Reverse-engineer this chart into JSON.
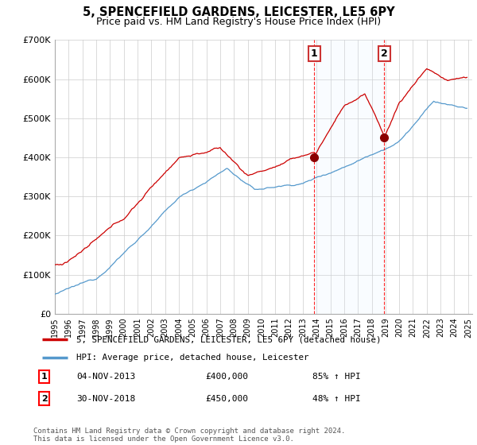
{
  "title": "5, SPENCEFIELD GARDENS, LEICESTER, LE5 6PY",
  "subtitle": "Price paid vs. HM Land Registry's House Price Index (HPI)",
  "legend_entry1": "5, SPENCEFIELD GARDENS, LEICESTER, LE5 6PY (detached house)",
  "legend_entry2": "HPI: Average price, detached house, Leicester",
  "sale1_date": "04-NOV-2013",
  "sale1_price": 400000,
  "sale1_label": "85% ↑ HPI",
  "sale2_date": "30-NOV-2018",
  "sale2_price": 450000,
  "sale2_label": "48% ↑ HPI",
  "footnote": "Contains HM Land Registry data © Crown copyright and database right 2024.\nThis data is licensed under the Open Government Licence v3.0.",
  "ylim": [
    0,
    700000
  ],
  "xlim_start": 1995.0,
  "xlim_end": 2025.3,
  "sale1_year": 2013.84,
  "sale2_year": 2018.92,
  "background_color": "#ffffff",
  "shaded_span_color": "#ddeeff",
  "hpi_line_color": "#5599cc",
  "property_line_color": "#cc0000",
  "grid_color": "#cccccc",
  "yticks": [
    0,
    100000,
    200000,
    300000,
    400000,
    500000,
    600000,
    700000
  ],
  "ylabels": [
    "£0",
    "£100K",
    "£200K",
    "£300K",
    "£400K",
    "£500K",
    "£600K",
    "£700K"
  ]
}
